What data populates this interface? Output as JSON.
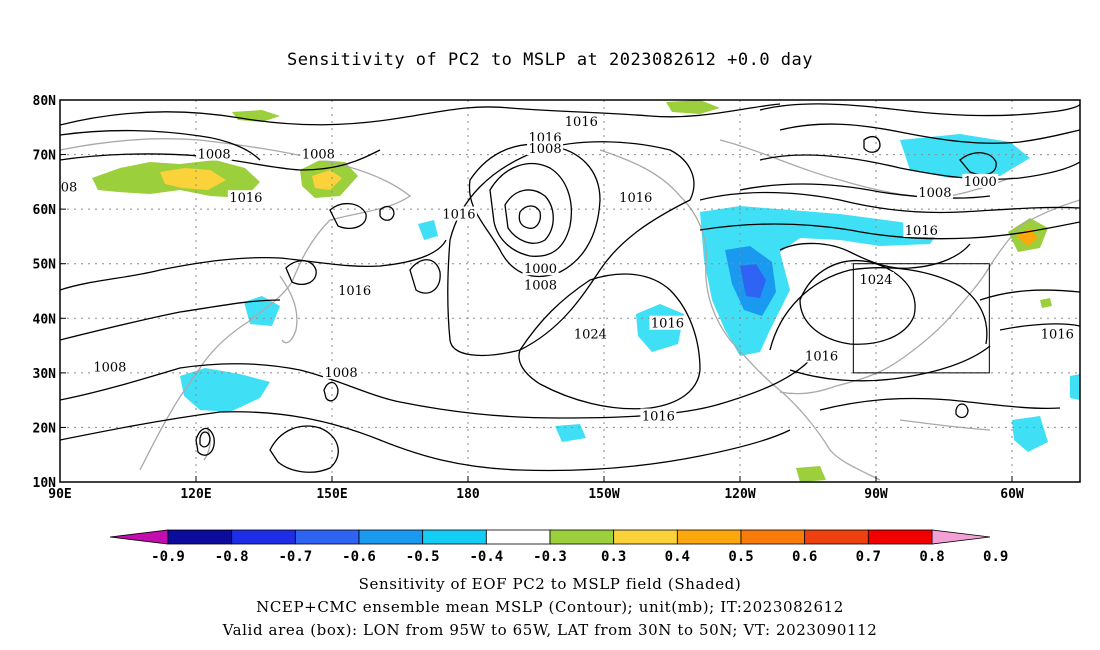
{
  "title": "Sensitivity of PC2 to MSLP at 2023082612 +0.0 day",
  "axes": {
    "lon_labels": [
      "90E",
      "120E",
      "150E",
      "180",
      "150W",
      "120W",
      "90W",
      "60W"
    ],
    "lat_labels": [
      "80N",
      "70N",
      "60N",
      "50N",
      "40N",
      "30N",
      "20N",
      "10N"
    ],
    "lon_values": [
      90,
      120,
      150,
      180,
      210,
      240,
      270,
      300
    ],
    "lat_values": [
      80,
      70,
      60,
      50,
      40,
      30,
      20,
      10
    ],
    "lon_range": [
      90,
      315
    ],
    "lat_range": [
      10,
      80
    ],
    "grid": "dotted"
  },
  "contour_labels": [
    {
      "text": "1016",
      "lon": 205,
      "lat": 76
    },
    {
      "text": "1016",
      "lon": 197,
      "lat": 73
    },
    {
      "text": "1008",
      "lon": 197,
      "lat": 71
    },
    {
      "text": "1008",
      "lon": 124,
      "lat": 70
    },
    {
      "text": "1008",
      "lon": 147,
      "lat": 70
    },
    {
      "text": "08",
      "lon": 92,
      "lat": 64
    },
    {
      "text": "1016",
      "lon": 131,
      "lat": 62
    },
    {
      "text": "1016",
      "lon": 217,
      "lat": 62
    },
    {
      "text": "1016",
      "lon": 178,
      "lat": 59
    },
    {
      "text": "1008",
      "lon": 283,
      "lat": 63
    },
    {
      "text": "1000",
      "lon": 293,
      "lat": 65
    },
    {
      "text": "1016",
      "lon": 280,
      "lat": 56
    },
    {
      "text": "1000",
      "lon": 196,
      "lat": 49
    },
    {
      "text": "1008",
      "lon": 196,
      "lat": 46
    },
    {
      "text": "1024",
      "lon": 270,
      "lat": 47
    },
    {
      "text": "1016",
      "lon": 155,
      "lat": 45
    },
    {
      "text": "1016",
      "lon": 224,
      "lat": 39
    },
    {
      "text": "1024",
      "lon": 207,
      "lat": 37
    },
    {
      "text": "1016",
      "lon": 310,
      "lat": 37
    },
    {
      "text": "1016",
      "lon": 258,
      "lat": 33
    },
    {
      "text": "1008",
      "lon": 101,
      "lat": 31
    },
    {
      "text": "1008",
      "lon": 152,
      "lat": 30
    },
    {
      "text": "1016",
      "lon": 222,
      "lat": 22
    }
  ],
  "valid_box": {
    "lon_min": 265,
    "lon_max": 295,
    "lat_min": 30,
    "lat_max": 50
  },
  "colorbar": {
    "labels": [
      "-0.9",
      "-0.8",
      "-0.7",
      "-0.6",
      "-0.5",
      "-0.4",
      "-0.3",
      "0.3",
      "0.4",
      "0.5",
      "0.6",
      "0.7",
      "0.8",
      "0.9"
    ],
    "colors": [
      "#0b0b9c",
      "#1e2ee6",
      "#2f63f3",
      "#1a99f0",
      "#14cdf5",
      "#ffffff",
      "#9ccf3c",
      "#fcd23a",
      "#fca80d",
      "#f97b0a",
      "#ef4010",
      "#f20000"
    ],
    "low_arrow": "#c40dae",
    "high_arrow": "#f2a0d6"
  },
  "footer": {
    "line1": "Sensitivity of EOF PC2 to MSLP field (Shaded)",
    "line2": "NCEP+CMC ensemble mean MSLP (Contour); unit(mb); IT:2023082612",
    "line3": "Valid area (box): LON from 95W to 65W, LAT from 30N to 50N; VT: 2023090112"
  }
}
